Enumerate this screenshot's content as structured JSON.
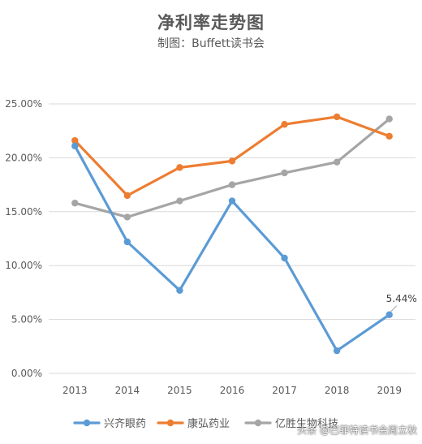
{
  "colors": {
    "series_1": "#5b9bd5",
    "series_2": "#ed7d31",
    "series_3": "#a5a5a5",
    "grid": "#d9d9d9"
  },
  "chart_data": {
    "type": "line",
    "title": "净利率走势图",
    "subtitle": "制图：Buffett读书会",
    "x": [
      "2013",
      "2014",
      "2015",
      "2016",
      "2017",
      "2018",
      "2019"
    ],
    "ylim": [
      0,
      25
    ],
    "yticks": [
      "0.00%",
      "5.00%",
      "10.00%",
      "15.00%",
      "20.00%",
      "25.00%"
    ],
    "grid": true,
    "legend_position": "bottom",
    "series": [
      {
        "name": "兴齐眼药",
        "values": [
          21.1,
          12.2,
          7.7,
          16.0,
          10.7,
          2.1,
          5.44
        ]
      },
      {
        "name": "康弘药业",
        "values": [
          21.6,
          16.5,
          19.1,
          19.7,
          23.1,
          23.8,
          22.0
        ]
      },
      {
        "name": "亿胜生物科技",
        "values": [
          15.8,
          14.5,
          16.0,
          17.5,
          18.6,
          19.6,
          23.6
        ]
      }
    ],
    "annotations": [
      {
        "series": 0,
        "index": 6,
        "text": "5.44%"
      }
    ]
  },
  "watermark": "头条 @巴菲特读书会周立秋"
}
